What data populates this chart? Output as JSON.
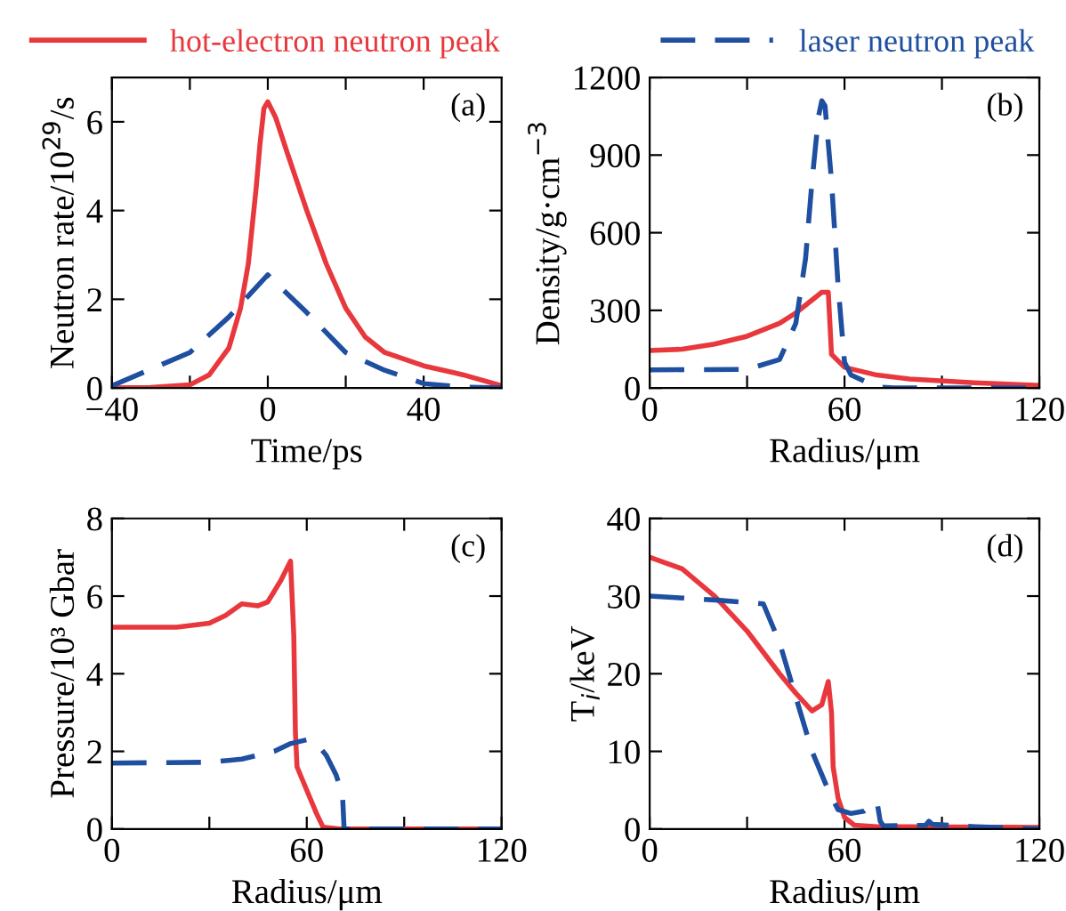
{
  "chart_data": [
    {
      "type": "line",
      "legend": "top",
      "xlabel": "Time/ps",
      "ylabel": "Neutron rate/10$^{29}$/s",
      "annotations": [
        "(a)"
      ],
      "xlim": [
        -40,
        60
      ],
      "xticks": [
        -40,
        {
          "value": -20,
          "label": null
        },
        0,
        {
          "value": 20,
          "label": null
        },
        40
      ],
      "ylim": [
        0,
        7
      ],
      "yticks": [
        0,
        2,
        4,
        6
      ],
      "series": [
        {
          "name": "hot-electron neutron peak",
          "color": "#e8383d",
          "line_style": "solid",
          "x": [
            -40,
            -30,
            -20,
            -15,
            -10,
            -7,
            -5,
            -3,
            -2,
            -1,
            0,
            2,
            5,
            10,
            15,
            20,
            25,
            30,
            40,
            50,
            60
          ],
          "values": [
            0,
            0.01,
            0.07,
            0.3,
            0.9,
            1.8,
            2.8,
            4.5,
            5.5,
            6.3,
            6.45,
            6.1,
            5.3,
            4.0,
            2.8,
            1.8,
            1.15,
            0.8,
            0.5,
            0.3,
            0.05
          ]
        },
        {
          "name": "laser neutron peak",
          "color": "#1f4fa0",
          "line_style": "dashed",
          "x": [
            -40,
            -20,
            -10,
            0,
            10,
            20,
            30,
            40,
            50,
            60
          ],
          "values": [
            0.05,
            0.8,
            1.6,
            2.55,
            1.7,
            0.8,
            0.4,
            0.1,
            0.02,
            0
          ]
        }
      ]
    },
    {
      "type": "line",
      "xlabel": "Radius/μm",
      "ylabel": "Density/g·cm$^{−3}$",
      "annotations": [
        "(b)"
      ],
      "xlim": [
        0,
        120
      ],
      "xticks": [
        0,
        {
          "value": 30,
          "label": null
        },
        60,
        {
          "value": 90,
          "label": null
        },
        120
      ],
      "ylim": [
        0,
        1200
      ],
      "yticks": [
        0,
        300,
        600,
        900,
        1200
      ],
      "series": [
        {
          "color": "#e8383d",
          "line_style": "solid",
          "x": [
            0,
            10,
            20,
            30,
            40,
            45,
            50,
            53,
            55,
            56,
            60,
            70,
            80,
            100,
            120
          ],
          "values": [
            145,
            150,
            170,
            200,
            250,
            290,
            340,
            370,
            370,
            130,
            80,
            50,
            35,
            20,
            10
          ]
        },
        {
          "color": "#1f4fa0",
          "line_style": "dashed",
          "x": [
            0,
            30,
            40,
            45,
            48,
            50,
            52,
            53,
            54,
            56,
            58,
            60,
            62,
            70,
            75,
            120
          ],
          "values": [
            70,
            72,
            110,
            250,
            500,
            800,
            1050,
            1110,
            1090,
            800,
            400,
            100,
            50,
            5,
            0,
            0
          ]
        }
      ]
    },
    {
      "type": "line",
      "xlabel": "Radius/μm",
      "ylabel": "Pressure/10³ Gbar",
      "annotations": [
        "(c)"
      ],
      "xlim": [
        0,
        120
      ],
      "xticks": [
        0,
        {
          "value": 30,
          "label": null
        },
        60,
        {
          "value": 90,
          "label": null
        },
        120
      ],
      "ylim": [
        0,
        8
      ],
      "yticks": [
        0,
        2,
        4,
        6,
        8
      ],
      "series": [
        {
          "color": "#e8383d",
          "line_style": "solid",
          "x": [
            0,
            20,
            30,
            35,
            40,
            45,
            48,
            52,
            55,
            56,
            56.5,
            57,
            60,
            63,
            65,
            70,
            120
          ],
          "values": [
            5.2,
            5.2,
            5.3,
            5.5,
            5.8,
            5.75,
            5.85,
            6.4,
            6.9,
            5,
            2.5,
            1.6,
            1.0,
            0.4,
            0.05,
            0,
            0
          ]
        },
        {
          "color": "#1f4fa0",
          "line_style": "dashed",
          "x": [
            0,
            30,
            40,
            50,
            55,
            60,
            63,
            66,
            69,
            71,
            71.5,
            120
          ],
          "values": [
            1.7,
            1.72,
            1.8,
            2.0,
            2.2,
            2.3,
            2.2,
            1.9,
            1.4,
            0.9,
            0,
            0
          ]
        }
      ]
    },
    {
      "type": "line",
      "xlabel": "Radius/μm",
      "ylabel": "T$_{i}$/keV",
      "annotations": [
        "(d)"
      ],
      "xlim": [
        0,
        120
      ],
      "xticks": [
        0,
        {
          "value": 30,
          "label": null
        },
        60,
        {
          "value": 90,
          "label": null
        },
        120
      ],
      "ylim": [
        0,
        40
      ],
      "yticks": [
        0,
        10,
        20,
        30,
        40
      ],
      "series": [
        {
          "color": "#e8383d",
          "line_style": "solid",
          "x": [
            0,
            10,
            20,
            30,
            40,
            45,
            50,
            53,
            55,
            56,
            56.5,
            58,
            60,
            63,
            70,
            120
          ],
          "values": [
            35,
            33.5,
            30,
            25.5,
            20,
            17.5,
            15.2,
            16,
            19,
            15,
            8,
            4,
            1.5,
            0.5,
            0.3,
            0.2
          ]
        },
        {
          "color": "#1f4fa0",
          "line_style": "dashed",
          "x": [
            0,
            20,
            35,
            40,
            45,
            50,
            55,
            58,
            62,
            66,
            70,
            71,
            72,
            85,
            86,
            87,
            100,
            120
          ],
          "values": [
            30,
            29.5,
            29,
            24,
            17,
            10,
            5,
            2.5,
            2,
            2.3,
            3.5,
            1,
            0.4,
            0.5,
            1,
            0.6,
            0.3,
            0
          ]
        }
      ]
    }
  ]
}
